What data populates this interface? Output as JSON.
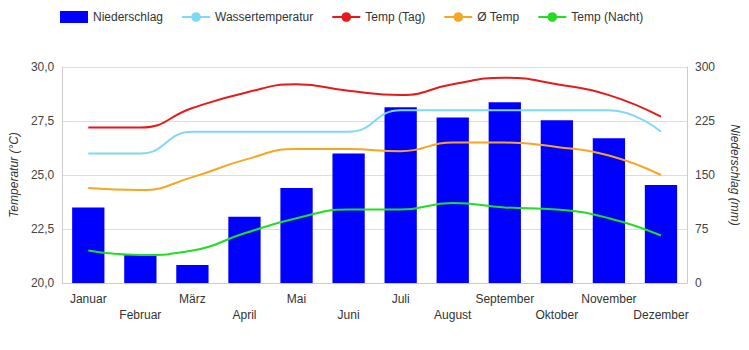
{
  "chart_data": {
    "type": "bar",
    "categories": [
      "Januar",
      "Februar",
      "März",
      "April",
      "Mai",
      "Juni",
      "Juli",
      "August",
      "September",
      "Oktober",
      "November",
      "Dezember"
    ],
    "ylabel": "Temperatur (°C)",
    "y2label": "Niederschlag (mm)",
    "ylim": [
      20,
      30
    ],
    "yticks": [
      {
        "value": 20,
        "label": "20,0"
      },
      {
        "value": 22.5,
        "label": "22,5"
      },
      {
        "value": 25,
        "label": "25,0"
      },
      {
        "value": 27.5,
        "label": "27,5"
      },
      {
        "value": 30,
        "label": "30,0"
      }
    ],
    "y2lim": [
      0,
      300
    ],
    "y2ticks": [
      0,
      75,
      150,
      225,
      300
    ],
    "grid": true,
    "legend": "top-left",
    "series": [
      {
        "name": "Niederschlag",
        "type": "bar",
        "axis": "y2",
        "color": "#0000ff",
        "values": [
          105,
          39,
          25,
          92,
          132,
          180,
          244,
          230,
          251,
          226,
          201,
          136
        ]
      },
      {
        "name": "Wassertemperatur",
        "type": "line",
        "color": "#7fd8f5",
        "values": [
          26.0,
          26.0,
          27.0,
          27.0,
          27.0,
          27.0,
          28.0,
          28.0,
          28.0,
          28.0,
          28.0,
          27.0
        ]
      },
      {
        "name": "Temp (Tag)",
        "type": "line",
        "color": "#e8191a",
        "values": [
          27.2,
          27.2,
          28.1,
          28.8,
          29.2,
          28.9,
          28.7,
          29.2,
          29.5,
          29.2,
          28.7,
          27.7
        ]
      },
      {
        "name": "Ø Temp",
        "type": "line",
        "color": "#f5a623",
        "values": [
          24.4,
          24.3,
          24.9,
          25.7,
          26.2,
          26.2,
          26.1,
          26.5,
          26.5,
          26.3,
          25.9,
          25.0
        ]
      },
      {
        "name": "Temp (Nacht)",
        "type": "line",
        "color": "#22dd22",
        "values": [
          21.5,
          21.3,
          21.5,
          22.3,
          23.0,
          23.4,
          23.4,
          23.7,
          23.5,
          23.4,
          23.0,
          22.2
        ]
      }
    ]
  }
}
